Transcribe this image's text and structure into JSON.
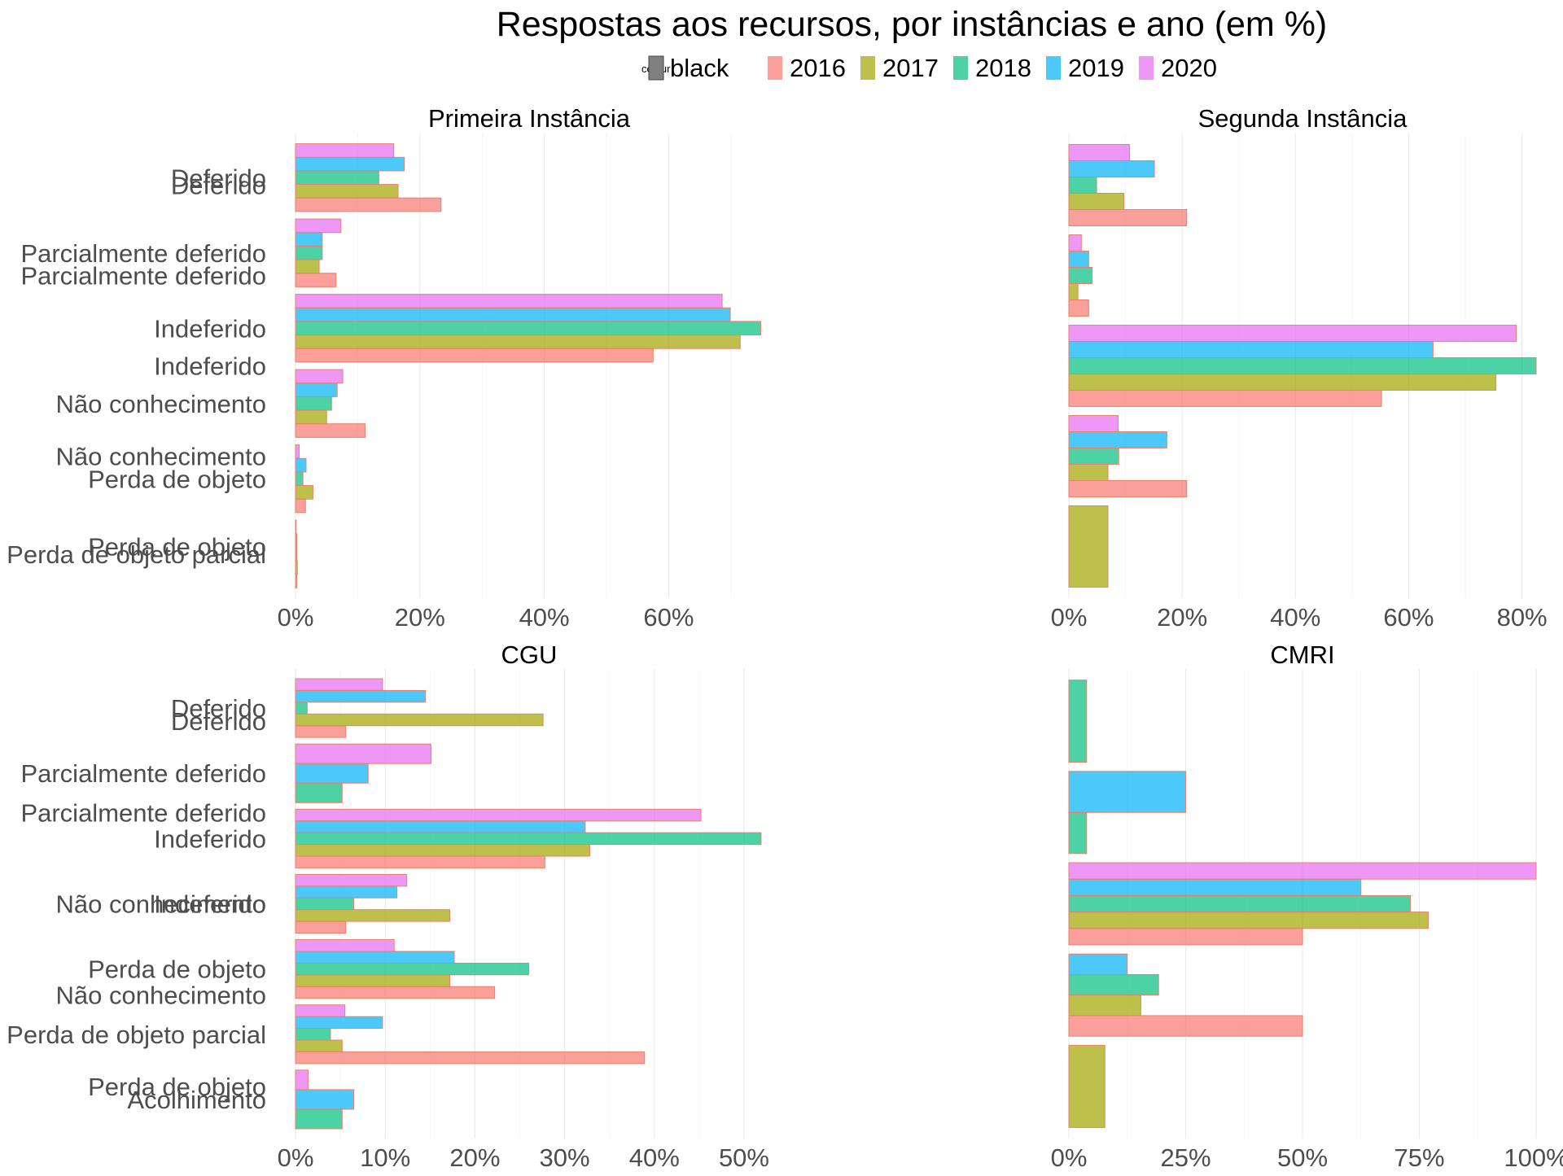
{
  "title": "Respostas aos recursos, por instâncias e ano (em %)",
  "legend": {
    "colour_title": "colour",
    "colour_label": "black",
    "placement": "top",
    "years": [
      {
        "label": "2016",
        "color": "#F8766D"
      },
      {
        "label": "2017",
        "color": "#A3A500"
      },
      {
        "label": "2018",
        "color": "#00BF7D"
      },
      {
        "label": "2019",
        "color": "#00B0F6"
      },
      {
        "label": "2020",
        "color": "#E76BF3"
      }
    ],
    "black_color": "#808080"
  },
  "bar_outline_color": "#E8826A",
  "chart_data": [
    {
      "type": "bar",
      "orientation": "horizontal",
      "title": "Primeira Instância",
      "categories": [
        "Deferido",
        "Parcialmente deferido",
        "Indeferido",
        "Não conhecimento",
        "Perda de objeto",
        "Perda de objeto parcial"
      ],
      "series": [
        {
          "name": "2016",
          "values": [
            23.4,
            6.5,
            57.5,
            11.2,
            1.6,
            0.2
          ]
        },
        {
          "name": "2017",
          "values": [
            16.5,
            3.8,
            71.5,
            5.0,
            2.8,
            0.3
          ]
        },
        {
          "name": "2018",
          "values": [
            13.4,
            4.3,
            74.8,
            5.8,
            1.2,
            0.2
          ]
        },
        {
          "name": "2019",
          "values": [
            17.5,
            4.3,
            69.9,
            6.7,
            1.7,
            0.2
          ]
        },
        {
          "name": "2020",
          "values": [
            15.8,
            7.3,
            68.6,
            7.6,
            0.6,
            0.1
          ]
        }
      ],
      "xlim": [
        0,
        75
      ],
      "xticks": [
        0,
        20,
        40,
        60
      ],
      "tick_labels": [
        "0%",
        "20%",
        "40%",
        "60%"
      ],
      "grid": true
    },
    {
      "type": "bar",
      "orientation": "horizontal",
      "title": "Segunda Instância",
      "categories": [
        "Deferido",
        "Parcialmente deferido",
        "Indeferido",
        "Não conhecimento",
        "Perda de objeto"
      ],
      "series": [
        {
          "name": "2016",
          "values": [
            20.8,
            3.5,
            55.2,
            20.8,
            null
          ]
        },
        {
          "name": "2017",
          "values": [
            9.7,
            1.6,
            75.4,
            6.9,
            6.9
          ]
        },
        {
          "name": "2018",
          "values": [
            4.9,
            4.1,
            82.5,
            8.8,
            null
          ]
        },
        {
          "name": "2019",
          "values": [
            15.1,
            3.5,
            64.3,
            17.3,
            null
          ]
        },
        {
          "name": "2020",
          "values": [
            10.7,
            2.2,
            79.0,
            8.7,
            null
          ]
        }
      ],
      "xlim": [
        0,
        82.5
      ],
      "xticks": [
        0,
        20,
        40,
        60,
        80
      ],
      "tick_labels": [
        "0%",
        "20%",
        "40%",
        "60%",
        "80%"
      ],
      "grid": true
    },
    {
      "type": "bar",
      "orientation": "horizontal",
      "title": "CGU",
      "categories": [
        "Deferido",
        "Parcialmente deferido",
        "Indeferido",
        "Não conhecimento",
        "Perda de objeto",
        "Perda de objeto parcial",
        "Acolhimento"
      ],
      "series": [
        {
          "name": "2016",
          "values": [
            5.6,
            null,
            27.8,
            5.6,
            22.2,
            38.9,
            null
          ]
        },
        {
          "name": "2017",
          "values": [
            27.6,
            null,
            32.8,
            17.2,
            17.2,
            5.2,
            null
          ]
        },
        {
          "name": "2018",
          "values": [
            1.3,
            5.2,
            51.9,
            6.5,
            26.0,
            3.9,
            5.2
          ]
        },
        {
          "name": "2019",
          "values": [
            14.5,
            8.1,
            32.3,
            11.3,
            17.7,
            9.7,
            6.5
          ]
        },
        {
          "name": "2020",
          "values": [
            9.7,
            15.1,
            45.2,
            12.4,
            11.0,
            5.5,
            1.4
          ]
        }
      ],
      "xlim": [
        0,
        52
      ],
      "xticks": [
        0,
        10,
        20,
        30,
        40,
        50
      ],
      "tick_labels": [
        "0%",
        "10%",
        "20%",
        "30%",
        "40%",
        "50%"
      ],
      "grid": true
    },
    {
      "type": "bar",
      "orientation": "horizontal",
      "title": "CMRI",
      "categories": [
        "Deferido",
        "Parcialmente deferido",
        "Indeferido",
        "Não conhecimento",
        "Perda de objeto"
      ],
      "series": [
        {
          "name": "2016",
          "values": [
            null,
            null,
            50.0,
            50.0,
            null
          ]
        },
        {
          "name": "2017",
          "values": [
            null,
            null,
            76.9,
            15.4,
            7.7
          ]
        },
        {
          "name": "2018",
          "values": [
            3.8,
            3.8,
            73.1,
            19.2,
            null
          ]
        },
        {
          "name": "2019",
          "values": [
            null,
            25.0,
            62.5,
            12.5,
            null
          ]
        },
        {
          "name": "2020",
          "values": [
            null,
            null,
            100.0,
            null,
            null
          ]
        }
      ],
      "xlim": [
        0,
        100
      ],
      "xticks": [
        0,
        25,
        50,
        75,
        100
      ],
      "tick_labels": [
        "0%",
        "25%",
        "50%",
        "75%",
        "100%"
      ],
      "grid": true
    }
  ]
}
